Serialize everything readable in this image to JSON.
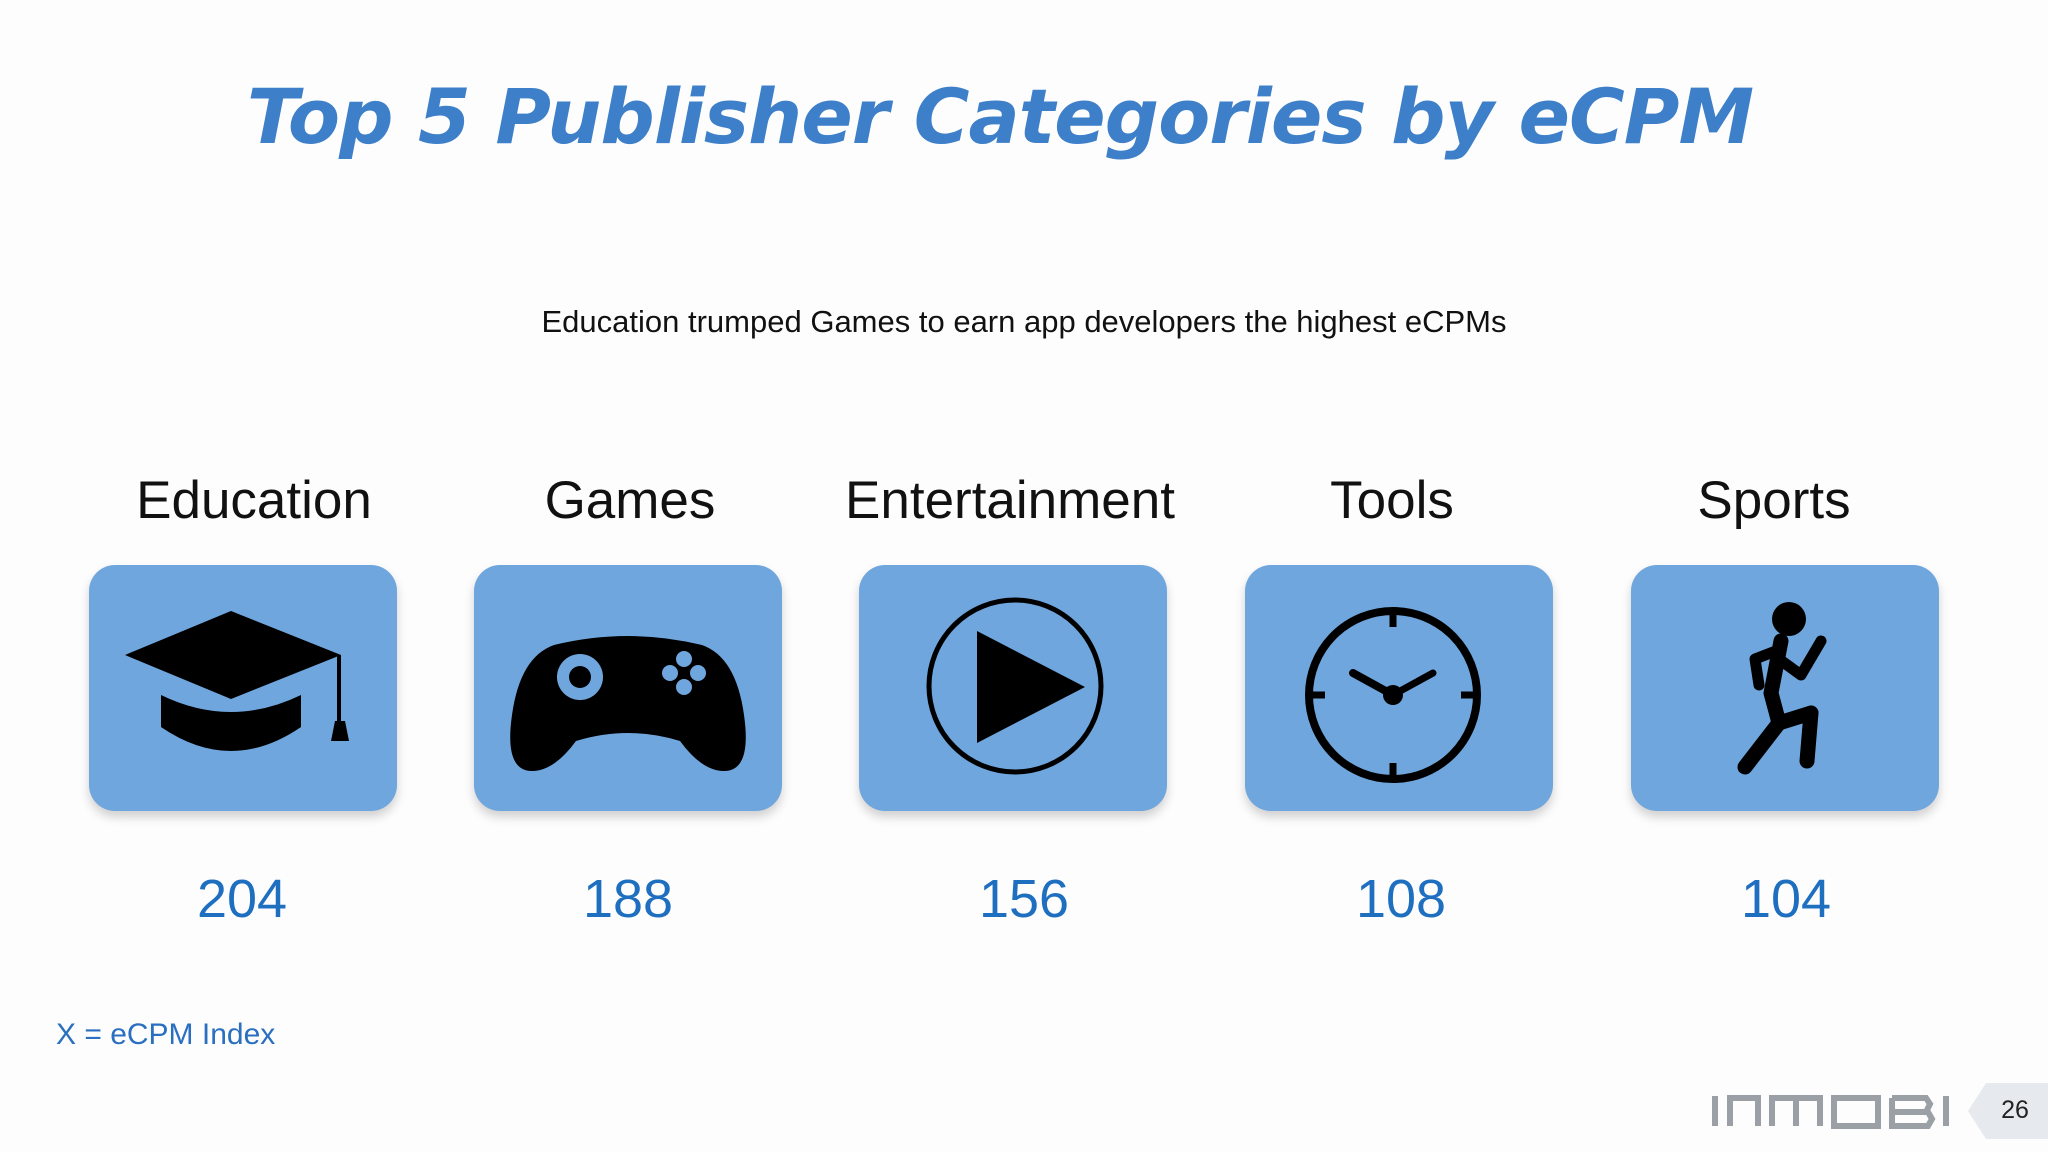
{
  "title": "Top 5 Publisher Categories by eCPM",
  "subtitle": "Education trumped Games to earn app developers the highest eCPMs",
  "categories": [
    {
      "label": "Education",
      "icon": "graduation-cap-icon",
      "value": "204"
    },
    {
      "label": "Games",
      "icon": "gamepad-icon",
      "value": "188"
    },
    {
      "label": "Entertainment",
      "icon": "play-icon",
      "value": "156"
    },
    {
      "label": "Tools",
      "icon": "clock-icon",
      "value": "108"
    },
    {
      "label": "Sports",
      "icon": "runner-icon",
      "value": "104"
    }
  ],
  "footnote": "X = eCPM Index",
  "logo_text": "INMOBI",
  "page_number": "26",
  "colors": {
    "title": "#3d7fc9",
    "tile": "#6fa6dd",
    "value": "#1f6fc0",
    "footnote": "#2a6fc0"
  }
}
